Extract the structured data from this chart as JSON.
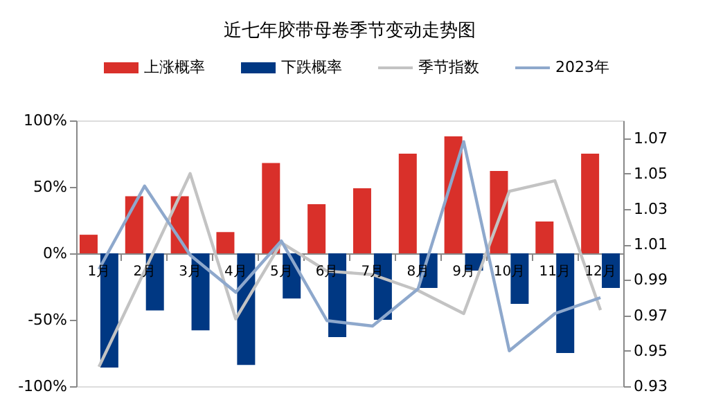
{
  "chart_data": {
    "type": "bar",
    "title": "近七年胶带母卷季节变动走势图",
    "categories": [
      "1月",
      "2月",
      "3月",
      "4月",
      "5月",
      "6月",
      "7月",
      "8月",
      "9月",
      "10月",
      "11月",
      "12月"
    ],
    "series": [
      {
        "name": "上涨概率",
        "color": "#d9302a",
        "values": [
          14,
          43,
          43,
          16,
          68,
          37,
          49,
          75,
          88,
          62,
          24,
          75
        ]
      },
      {
        "name": "下跌概率",
        "color": "#003883",
        "values": [
          -86,
          -43,
          -58,
          -84,
          -34,
          -63,
          -50,
          -26,
          -13,
          -38,
          -75,
          -26
        ]
      },
      {
        "name": "季节指数",
        "type": "line",
        "axis": "y2",
        "color": "#c3c3c3",
        "values": [
          0.941,
          0.995,
          1.05,
          0.968,
          1.011,
          0.995,
          0.993,
          0.984,
          0.971,
          1.04,
          1.046,
          0.973
        ]
      },
      {
        "name": "2023年",
        "type": "line",
        "axis": "y2",
        "color": "#8ea8cc",
        "values": [
          0.996,
          1.043,
          1.004,
          0.983,
          1.012,
          0.967,
          0.964,
          0.985,
          1.068,
          0.95,
          0.971,
          0.98
        ]
      }
    ],
    "ylim": [
      -100,
      100
    ],
    "yticks": [
      {
        "value": -100,
        "label": "-100%"
      },
      {
        "value": -50,
        "label": "-50%"
      },
      {
        "value": 0,
        "label": "0%"
      },
      {
        "value": 50,
        "label": "50%"
      },
      {
        "value": 100,
        "label": "100%"
      }
    ],
    "y2lim": [
      0.93,
      1.08
    ],
    "y2ticks": [
      {
        "value": 0.93,
        "label": "0.93"
      },
      {
        "value": 0.95,
        "label": "0.95"
      },
      {
        "value": 0.97,
        "label": "0.97"
      },
      {
        "value": 0.99,
        "label": "0.99"
      },
      {
        "value": 1.01,
        "label": "1.01"
      },
      {
        "value": 1.03,
        "label": "1.03"
      },
      {
        "value": 1.05,
        "label": "1.05"
      },
      {
        "value": 1.07,
        "label": "1.07"
      }
    ],
    "grid": false,
    "legend": "top"
  }
}
